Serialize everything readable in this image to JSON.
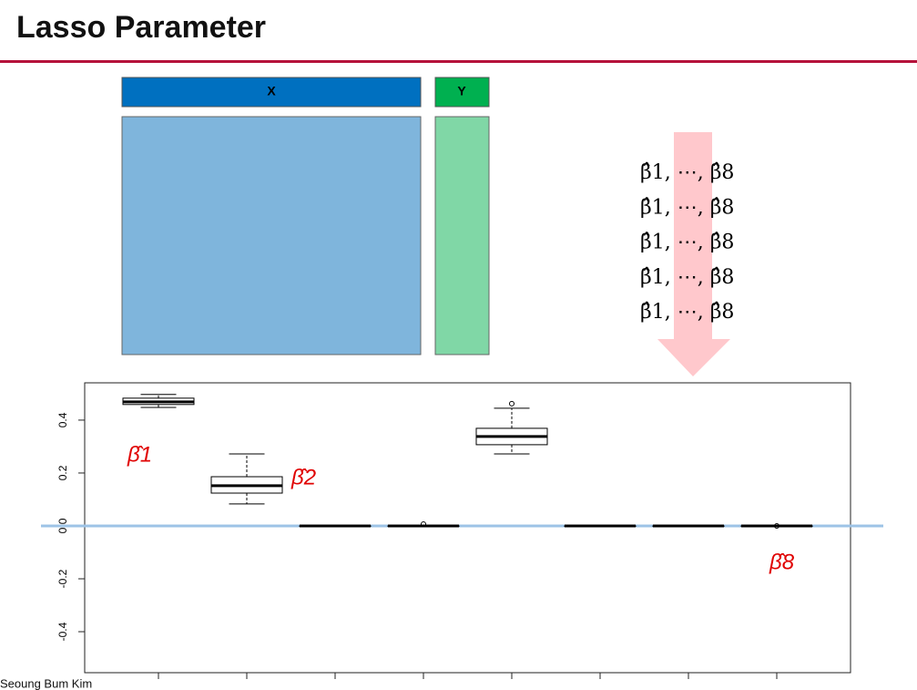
{
  "header": {
    "title": "Lasso Parameter"
  },
  "matrix": {
    "x_label": "X",
    "y_label": "Y"
  },
  "estimates": [
    "β̂1, ⋯, β̂8",
    "β̂1, ⋯, β̂8",
    "β̂1, ⋯, β̂8",
    "β̂1, ⋯, β̂8",
    "β̂1, ⋯, β̂8"
  ],
  "annotations": [
    "β̂1",
    "β̂2",
    "β̂8"
  ],
  "footer": "Seoung Bum Kim",
  "chart_data": {
    "type": "box",
    "ylim": [
      -0.555,
      0.541
    ],
    "yticks": [
      -0.4,
      -0.2,
      {
        "value": 0,
        "label": "0.0"
      },
      0.2,
      0.4
    ],
    "reference_line_color": "#9dc3e6",
    "series": [
      {
        "name": "coefficients",
        "color": "#000000",
        "values": [
          {
            "min": 0.448,
            "q1": 0.459,
            "median": 0.469,
            "q3": 0.483,
            "max": 0.497,
            "outliers": []
          },
          {
            "min": 0.083,
            "q1": 0.124,
            "median": 0.152,
            "q3": 0.186,
            "max": 0.272,
            "outliers": []
          },
          {
            "min": 0,
            "q1": 0,
            "median": 0,
            "q3": 0,
            "max": 0,
            "outliers": []
          },
          {
            "min": 0,
            "q1": 0,
            "median": 0,
            "q3": 0,
            "max": 0,
            "outliers": [
              0.007
            ]
          },
          {
            "min": 0.272,
            "q1": 0.307,
            "median": 0.338,
            "q3": 0.369,
            "max": 0.445,
            "outliers": [
              0.462
            ]
          },
          {
            "min": 0,
            "q1": 0,
            "median": 0,
            "q3": 0,
            "max": 0,
            "outliers": []
          },
          {
            "min": 0,
            "q1": 0,
            "median": 0,
            "q3": 0,
            "max": 0,
            "outliers": []
          },
          {
            "min": 0,
            "q1": 0,
            "median": 0,
            "q3": 0,
            "max": 0,
            "outliers": [
              0
            ]
          }
        ]
      }
    ]
  }
}
